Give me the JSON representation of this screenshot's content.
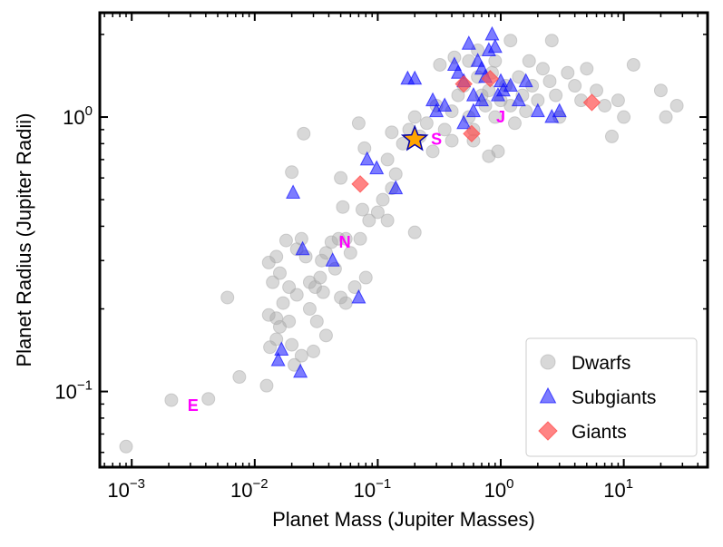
{
  "chart_data": {
    "type": "scatter",
    "title": "",
    "xlabel": "Planet Mass (Jupiter Masses)",
    "ylabel": "Planet Radius (Jupiter Radii)",
    "xscale": "log",
    "yscale": "log",
    "xlim": [
      0.00055,
      48
    ],
    "ylim": [
      0.053,
      2.4
    ],
    "x_tick_labels": [
      "10",
      "10",
      "10",
      "10"
    ],
    "x_tick_exponents": [
      "−3",
      "−2",
      "−1",
      "1"
    ],
    "x_tick_label_0": "10",
    "y_tick_labels": [
      "10",
      "10"
    ],
    "y_tick_exponents": [
      "−1",
      "0"
    ],
    "grid": false,
    "legend_position": "lower-right",
    "series": [
      {
        "name": "Dwarfs",
        "marker": "circle",
        "color": "#a9a9a9",
        "points": [
          [
            0.0009,
            0.063
          ],
          [
            0.0021,
            0.093
          ],
          [
            0.0042,
            0.094
          ],
          [
            0.0075,
            0.113
          ],
          [
            0.0125,
            0.105
          ],
          [
            0.0133,
            0.145
          ],
          [
            0.015,
            0.155
          ],
          [
            0.016,
            0.172
          ],
          [
            0.019,
            0.18
          ],
          [
            0.015,
            0.185
          ],
          [
            0.013,
            0.19
          ],
          [
            0.017,
            0.21
          ],
          [
            0.022,
            0.225
          ],
          [
            0.014,
            0.25
          ],
          [
            0.019,
            0.24
          ],
          [
            0.016,
            0.27
          ],
          [
            0.013,
            0.295
          ],
          [
            0.015,
            0.31
          ],
          [
            0.022,
            0.33
          ],
          [
            0.018,
            0.355
          ],
          [
            0.024,
            0.36
          ],
          [
            0.028,
            0.25
          ],
          [
            0.031,
            0.24
          ],
          [
            0.034,
            0.26
          ],
          [
            0.036,
            0.23
          ],
          [
            0.028,
            0.2
          ],
          [
            0.032,
            0.18
          ],
          [
            0.038,
            0.16
          ],
          [
            0.03,
            0.14
          ],
          [
            0.024,
            0.135
          ],
          [
            0.021,
            0.125
          ],
          [
            0.02,
            0.148
          ],
          [
            0.035,
            0.3
          ],
          [
            0.038,
            0.32
          ],
          [
            0.042,
            0.35
          ],
          [
            0.048,
            0.36
          ],
          [
            0.05,
            0.22
          ],
          [
            0.055,
            0.21
          ],
          [
            0.045,
            0.28
          ],
          [
            0.052,
            0.47
          ],
          [
            0.05,
            0.6
          ],
          [
            0.072,
            0.36
          ],
          [
            0.075,
            0.46
          ],
          [
            0.078,
            0.77
          ],
          [
            0.085,
            0.42
          ],
          [
            0.11,
            0.5
          ],
          [
            0.12,
            0.7
          ],
          [
            0.13,
            0.55
          ],
          [
            0.14,
            0.62
          ],
          [
            0.16,
            0.8
          ],
          [
            0.18,
            0.9
          ],
          [
            0.2,
            1.0
          ],
          [
            0.22,
            0.85
          ],
          [
            0.25,
            0.95
          ],
          [
            0.28,
            0.75
          ],
          [
            0.3,
            1.1
          ],
          [
            0.35,
            0.9
          ],
          [
            0.4,
            0.82
          ],
          [
            0.45,
            1.2
          ],
          [
            0.5,
            1.3
          ],
          [
            0.55,
            1.0
          ],
          [
            0.6,
            0.9
          ],
          [
            0.65,
            1.4
          ],
          [
            0.7,
            1.2
          ],
          [
            0.75,
            1.1
          ],
          [
            0.8,
            1.25
          ],
          [
            0.85,
            1.45
          ],
          [
            0.9,
            1.0
          ],
          [
            0.95,
            0.75
          ],
          [
            1.0,
            1.15
          ],
          [
            1.1,
            1.3
          ],
          [
            1.2,
            1.1
          ],
          [
            1.3,
            0.95
          ],
          [
            1.4,
            1.4
          ],
          [
            1.5,
            1.2
          ],
          [
            1.6,
            1.05
          ],
          [
            1.8,
            1.3
          ],
          [
            2.0,
            1.15
          ],
          [
            2.2,
            1.5
          ],
          [
            2.5,
            1.35
          ],
          [
            2.8,
            1.2
          ],
          [
            3.0,
            1.0
          ],
          [
            3.5,
            1.45
          ],
          [
            4.0,
            1.3
          ],
          [
            4.5,
            1.15
          ],
          [
            5.0,
            1.5
          ],
          [
            6.0,
            1.25
          ],
          [
            7.0,
            1.1
          ],
          [
            8.0,
            0.85
          ],
          [
            9.0,
            1.15
          ],
          [
            10.0,
            1.0
          ],
          [
            12.0,
            1.55
          ],
          [
            20.0,
            1.25
          ],
          [
            22.0,
            1.0
          ],
          [
            27.0,
            1.1
          ],
          [
            0.55,
            1.6
          ],
          [
            0.65,
            1.75
          ],
          [
            1.2,
            1.9
          ],
          [
            2.6,
            1.9
          ],
          [
            0.32,
            1.55
          ],
          [
            0.42,
            1.65
          ],
          [
            0.9,
            1.6
          ],
          [
            1.7,
            1.6
          ],
          [
            0.4,
            1.05
          ],
          [
            0.6,
            0.82
          ],
          [
            0.8,
            0.72
          ],
          [
            0.13,
            0.88
          ],
          [
            0.07,
            0.95
          ],
          [
            0.025,
            0.87
          ],
          [
            0.02,
            0.63
          ],
          [
            0.1,
            0.45
          ],
          [
            0.12,
            0.42
          ],
          [
            0.2,
            0.38
          ],
          [
            0.055,
            0.36
          ],
          [
            0.06,
            0.32
          ],
          [
            0.006,
            0.22
          ],
          [
            0.065,
            0.24
          ],
          [
            0.08,
            0.26
          ],
          [
            0.026,
            0.31
          ]
        ]
      },
      {
        "name": "Subgiants",
        "marker": "triangle",
        "color": "#1010ff",
        "points": [
          [
            0.0165,
            0.142
          ],
          [
            0.0155,
            0.13
          ],
          [
            0.0235,
            0.118
          ],
          [
            0.0205,
            0.53
          ],
          [
            0.0245,
            0.33
          ],
          [
            0.043,
            0.3
          ],
          [
            0.07,
            0.22
          ],
          [
            0.082,
            0.7
          ],
          [
            0.098,
            0.65
          ],
          [
            0.14,
            0.55
          ],
          [
            0.175,
            1.38
          ],
          [
            0.2,
            1.38
          ],
          [
            0.28,
            1.15
          ],
          [
            0.3,
            1.05
          ],
          [
            0.35,
            1.1
          ],
          [
            0.42,
            1.55
          ],
          [
            0.45,
            1.45
          ],
          [
            0.5,
            1.35
          ],
          [
            0.5,
            0.95
          ],
          [
            0.55,
            1.85
          ],
          [
            0.6,
            1.2
          ],
          [
            0.65,
            1.6
          ],
          [
            0.7,
            1.5
          ],
          [
            0.75,
            1.4
          ],
          [
            0.8,
            1.75
          ],
          [
            0.85,
            2.0
          ],
          [
            0.9,
            1.8
          ],
          [
            0.95,
            1.2
          ],
          [
            1.0,
            1.35
          ],
          [
            1.05,
            1.25
          ],
          [
            1.2,
            1.3
          ],
          [
            1.4,
            1.15
          ],
          [
            1.6,
            1.35
          ],
          [
            2.0,
            1.05
          ],
          [
            2.6,
            1.0
          ],
          [
            3.0,
            1.05
          ],
          [
            0.6,
            1.05
          ],
          [
            0.7,
            1.15
          ]
        ]
      },
      {
        "name": "Giants",
        "marker": "diamond",
        "color": "#ff5050",
        "points": [
          [
            0.072,
            0.57
          ],
          [
            0.5,
            1.32
          ],
          [
            0.58,
            0.87
          ],
          [
            0.82,
            1.38
          ],
          [
            5.5,
            1.13
          ]
        ]
      }
    ],
    "highlight": {
      "marker": "star",
      "fill": "#ffa500",
      "stroke": "#0000aa",
      "x": 0.2,
      "y": 0.83
    },
    "annotations": [
      {
        "text": "E",
        "x": 0.00315,
        "y": 0.089
      },
      {
        "text": "N",
        "x": 0.054,
        "y": 0.35
      },
      {
        "text": "S",
        "x": 0.3,
        "y": 0.83
      },
      {
        "text": "J",
        "x": 1.0,
        "y": 1.0
      }
    ]
  }
}
